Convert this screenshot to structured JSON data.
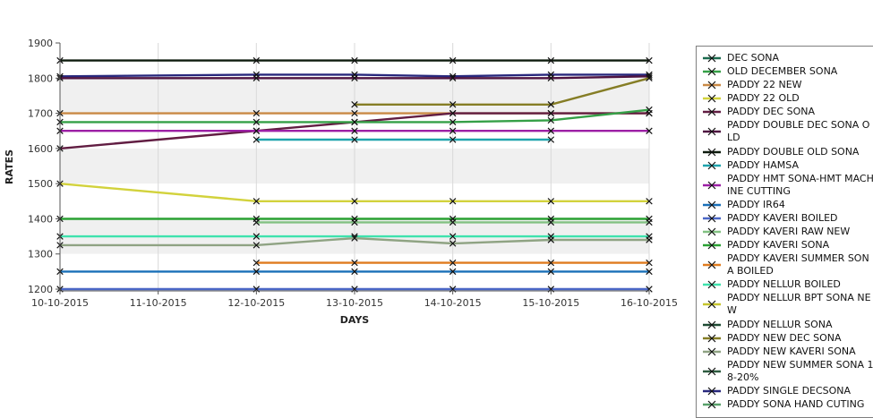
{
  "chart_data": {
    "type": "line",
    "title": "",
    "xlabel": "DAYS",
    "ylabel": "RATES",
    "ylim": [
      1195,
      1900
    ],
    "y_ticks": [
      1200,
      1300,
      1400,
      1500,
      1600,
      1700,
      1800,
      1900
    ],
    "x_tick_labels": [
      "10-10-2015",
      "11-10-2015",
      "12-10-2015",
      "13-10-2015",
      "14-10-2015",
      "15-10-2015",
      "16-10-2015"
    ],
    "data_date_indices": [
      0,
      2,
      3,
      4,
      5,
      6
    ],
    "grid": "vertical-only",
    "band_colors": [
      "#ffffff",
      "#f0f0f0"
    ],
    "marker": "x",
    "marker_color": "#101010",
    "legend_position": "right",
    "series": [
      {
        "name": "PADDY DOUBLE OLD SONA",
        "color": "#0d1b0d",
        "values": [
          1850,
          1850,
          1850,
          1850,
          1850,
          1850
        ]
      },
      {
        "name": "PADDY SINGLE DECSONA",
        "color": "#28287d",
        "values": [
          1805,
          1810,
          1810,
          1805,
          1810,
          1810
        ]
      },
      {
        "name": "PADDY DOUBLE DEC SONA OLD",
        "color": "#4e1340",
        "values": [
          1800,
          1800,
          1800,
          1800,
          1800,
          1805
        ]
      },
      {
        "name": "PADDY NEW DEC SONA",
        "color": "#857d25",
        "values": [
          null,
          null,
          1725,
          1725,
          1725,
          1800
        ]
      },
      {
        "name": "PADDY 22 NEW",
        "color": "#c98945",
        "values": [
          1700,
          1700,
          1700,
          1700,
          1700,
          1700
        ]
      },
      {
        "name": "PADDY DEC SONA",
        "color": "#611d42",
        "values": [
          1600,
          1650,
          1675,
          1700,
          1700,
          1700
        ]
      },
      {
        "name": "OLD DECEMBER SONA",
        "color": "#35a047",
        "values": [
          1675,
          1675,
          1675,
          1675,
          1680,
          1710
        ]
      },
      {
        "name": "PADDY HMT SONA-HMT MACHINE CUTTING",
        "color": "#9c1fa5",
        "values": [
          1650,
          1650,
          1650,
          1650,
          1650,
          1650
        ]
      },
      {
        "name": "PADDY HAMSA",
        "color": "#1fa3ad",
        "values": [
          null,
          1625,
          1625,
          1625,
          1625,
          null
        ]
      },
      {
        "name": "PADDY 22 OLD",
        "color": "#d2d23c",
        "values": [
          1500,
          1450,
          1450,
          1450,
          1450,
          1450
        ]
      },
      {
        "name": "PADDY KAVERI SONA",
        "color": "#2aa133",
        "values": [
          1400,
          1400,
          1400,
          1400,
          1400,
          1400
        ]
      },
      {
        "name": "PADDY KAVERI RAW NEW",
        "color": "#82c182",
        "values": [
          null,
          1390,
          1390,
          1390,
          1390,
          1390
        ]
      },
      {
        "name": "PADDY NELLUR BOILED",
        "color": "#3fe2ad",
        "values": [
          1350,
          1350,
          1350,
          1350,
          1350,
          1350
        ]
      },
      {
        "name": "PADDY NEW KAVERI SONA",
        "color": "#8fa383",
        "values": [
          1325,
          1325,
          1345,
          1330,
          1340,
          1340
        ]
      },
      {
        "name": "PADDY KAVERI SUMMER SONA BOILED",
        "color": "#df7b1e",
        "values": [
          null,
          1275,
          1275,
          1275,
          1275,
          1275
        ]
      },
      {
        "name": "PADDY IR64",
        "color": "#1a70b8",
        "values": [
          1250,
          1250,
          1250,
          1250,
          1250,
          1250
        ]
      },
      {
        "name": "PADDY KAVERI BOILED",
        "color": "#4b67c6",
        "values": [
          1200,
          1200,
          1200,
          1200,
          1200,
          1200
        ]
      }
    ]
  },
  "legend": {
    "items": [
      {
        "label": "DEC SONA",
        "color": "#1c6b4f"
      },
      {
        "label": "OLD DECEMBER SONA",
        "color": "#35a047"
      },
      {
        "label": "PADDY 22 NEW",
        "color": "#c98945"
      },
      {
        "label": "PADDY 22 OLD",
        "color": "#d2d23c"
      },
      {
        "label": "PADDY DEC SONA",
        "color": "#611d42"
      },
      {
        "label": "PADDY DOUBLE DEC SONA OLD",
        "color": "#4e1340"
      },
      {
        "label": "PADDY DOUBLE OLD SONA",
        "color": "#0d1b0d"
      },
      {
        "label": "PADDY HAMSA",
        "color": "#1fa3ad"
      },
      {
        "label": "PADDY HMT SONA-HMT MACHINE CUTTING",
        "color": "#9c1fa5"
      },
      {
        "label": "PADDY IR64",
        "color": "#1a70b8"
      },
      {
        "label": "PADDY KAVERI BOILED",
        "color": "#4b67c6"
      },
      {
        "label": "PADDY KAVERI RAW NEW",
        "color": "#82c182"
      },
      {
        "label": "PADDY KAVERI SONA",
        "color": "#2aa133"
      },
      {
        "label": "PADDY KAVERI SUMMER SONA BOILED",
        "color": "#df7b1e"
      },
      {
        "label": "PADDY NELLUR BOILED",
        "color": "#3fe2ad"
      },
      {
        "label": "PADDY NELLUR BPT SONA NEW",
        "color": "#c6c52e"
      },
      {
        "label": "PADDY NELLUR SONA",
        "color": "#1d4a33"
      },
      {
        "label": "PADDY NEW DEC SONA",
        "color": "#857d25"
      },
      {
        "label": "PADDY NEW KAVERI SONA",
        "color": "#8fa383"
      },
      {
        "label": "PADDY NEW SUMMER SONA 18-20%",
        "color": "#2e5c40"
      },
      {
        "label": "PADDY SINGLE DECSONA",
        "color": "#28287d"
      },
      {
        "label": "PADDY SONA HAND CUTING",
        "color": "#58a06a"
      }
    ]
  },
  "colors": {
    "background": "#ffffff",
    "axis": "#555555",
    "grid": "#d9d9d9",
    "tick_text": "#333333",
    "axis_label_text": "#222222",
    "legend_border": "#7f7f7f"
  }
}
